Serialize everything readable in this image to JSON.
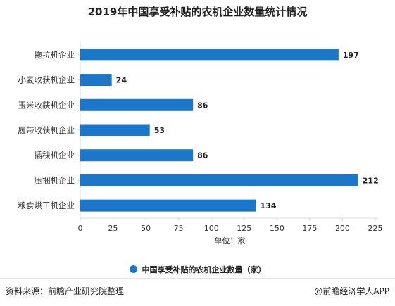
{
  "colors": {
    "bar": "#1b77c9",
    "axis": "#d9d9d9",
    "text": "#333333"
  },
  "chart_data": {
    "type": "bar",
    "orientation": "horizontal",
    "title": "2019年中国享受补贴的农机企业数量统计情况",
    "categories": [
      "拖拉机企业",
      "小麦收获机企业",
      "玉米收获机企业",
      "履带收获机企业",
      "插秧机企业",
      "压捆机企业",
      "粮食烘干机企业"
    ],
    "series": [
      {
        "name": "中国享受补贴的农机企业数量（家）",
        "values": [
          197,
          24,
          86,
          53,
          86,
          212,
          134
        ]
      }
    ],
    "xlabel": "单位：家",
    "xlim": [
      0,
      225
    ],
    "xticks": [
      0,
      25,
      50,
      75,
      100,
      125,
      150,
      175,
      200,
      225
    ],
    "grid": false,
    "legend": "bottom"
  },
  "footer": {
    "source": "资料来源：前瞻产业研究院整理",
    "brand": "@前瞻经济学人APP"
  }
}
